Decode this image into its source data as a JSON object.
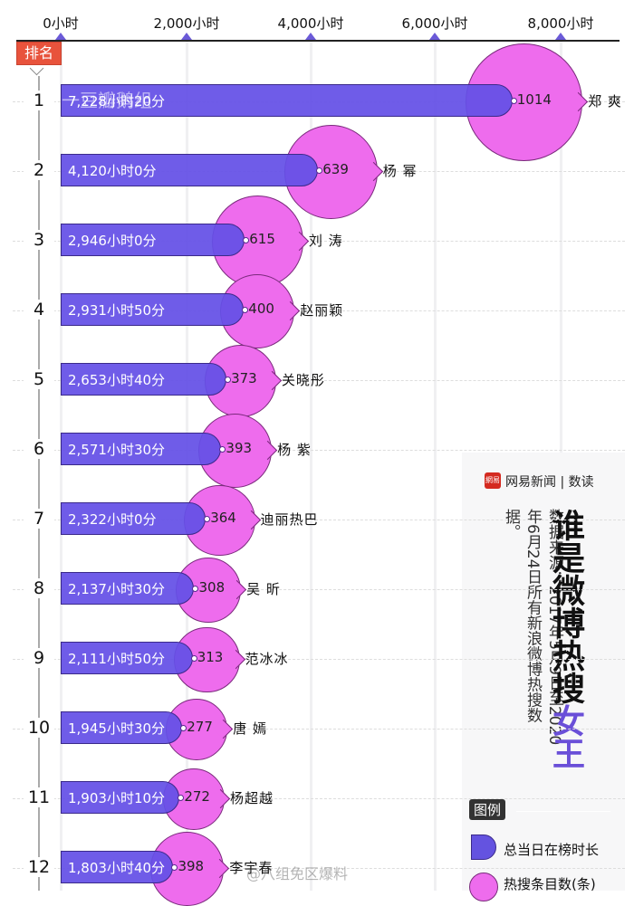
{
  "chart_data": {
    "type": "bar",
    "title": "谁是微博热搜女王",
    "title_main": "谁是微博热搜",
    "title_accent": "女王",
    "xlabel": "总当日在榜时长",
    "ylabel": "排名",
    "x_axis": {
      "ticks": [
        "0小时",
        "2,000小时",
        "4,000小时",
        "6,000小时",
        "8,000小时"
      ],
      "tick_values": [
        0,
        2000,
        4000,
        6000,
        8000
      ],
      "range": [
        0,
        8500
      ],
      "position": "top"
    },
    "grid": true,
    "categories": [
      "郑 爽",
      "杨 幂",
      "刘 涛",
      "赵丽颖",
      "关晓彤",
      "杨 紫",
      "迪丽热巴",
      "吴 昕",
      "范冰冰",
      "唐 嫣",
      "杨超越",
      "李宇春"
    ],
    "series": [
      {
        "name": "总当日在榜时长",
        "type": "bar",
        "color": "#6453e0",
        "values": [
          7228.33,
          4120.0,
          2946.0,
          2931.83,
          2653.67,
          2571.5,
          2322.0,
          2137.5,
          2111.83,
          1945.5,
          1903.17,
          1803.67
        ],
        "labels": [
          "7,228小时20分",
          "4,120小时0分",
          "2,946小时0分",
          "2,931小时50分",
          "2,653小时40分",
          "2,571小时30分",
          "2,322小时0分",
          "2,137小时30分",
          "2,111小时50分",
          "1,945小时30分",
          "1,903小时10分",
          "1,803小时40分"
        ]
      },
      {
        "name": "热搜条目数(条)",
        "type": "bubble",
        "color": "#ee6ced",
        "values": [
          1014,
          639,
          615,
          400,
          373,
          393,
          364,
          308,
          313,
          277,
          272,
          398
        ]
      }
    ],
    "legend": {
      "title": "图例",
      "position": "bottom-right",
      "entries": [
        "总当日在榜时长",
        "热搜条目数(条)"
      ]
    },
    "source": "数据来源：2017年5月9日至2020年6月24日所有新浪微博热搜数据。"
  },
  "ranks": [
    "1",
    "2",
    "3",
    "4",
    "5",
    "6",
    "7",
    "8",
    "9",
    "10",
    "11",
    "12"
  ],
  "rank_header": "排名",
  "brand": {
    "logo_text": "網易",
    "name": "网易新闻",
    "section": "数读"
  },
  "watermarks": {
    "inline": "一豆瓣鹅组",
    "bottom": "@八组免区爆料"
  },
  "colors": {
    "bar": "#6453e0",
    "bubble": "#ee6ced",
    "accent": "#6a4fd8",
    "badge": "#e8533c"
  }
}
